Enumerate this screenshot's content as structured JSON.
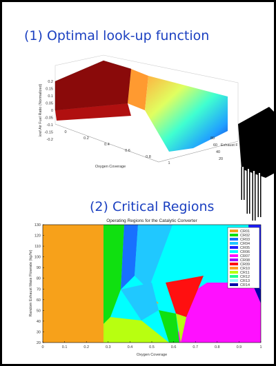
{
  "top_panel": {
    "heading": "(1) Optimal look-up function",
    "z_label": "λref Air Fuel Ratio (Normalized)",
    "x_label": "Oxygen Coverage",
    "y_label": "Exhaust F",
    "z_ticks": [
      0.2,
      0.15,
      0.1,
      0.05,
      0,
      -0.05,
      -0.1,
      -0.15,
      -0.2
    ],
    "x_ticks": [
      0,
      0.2,
      0.4,
      0.6,
      0.8,
      1
    ],
    "y_ticks": [
      20,
      40,
      60,
      80
    ]
  },
  "bottom_panel": {
    "heading": "(2) Critical Regions",
    "title": "Operating Regions for the Catalytic Converter",
    "x_label": "Oxygen Coverage",
    "y_label": "Random Exhaust Mass Flowrate (kg/hr)",
    "x_ticks": [
      0,
      0.1,
      0.2,
      0.3,
      0.4,
      0.5,
      0.6,
      0.7,
      0.8,
      0.9,
      1
    ],
    "y_ticks": [
      20,
      30,
      40,
      50,
      60,
      70,
      80,
      90,
      100,
      110,
      120,
      130
    ],
    "legend": [
      {
        "name": "CR01",
        "color": "#f7a11a"
      },
      {
        "name": "CR02",
        "color": "#10e010"
      },
      {
        "name": "CR03",
        "color": "#1870ff"
      },
      {
        "name": "CR04",
        "color": "#20c8ff"
      },
      {
        "name": "CR05",
        "color": "#2020ff"
      },
      {
        "name": "CR06",
        "color": "#00ffff"
      },
      {
        "name": "CR07",
        "color": "#ff10ff"
      },
      {
        "name": "CR08",
        "color": "#a010ff"
      },
      {
        "name": "CR09",
        "color": "#ff1010"
      },
      {
        "name": "CR10",
        "color": "#ffa020"
      },
      {
        "name": "CR11",
        "color": "#b8ff10"
      },
      {
        "name": "CR12",
        "color": "#20ff90"
      },
      {
        "name": "CR13",
        "color": "#90ffff"
      },
      {
        "name": "CR14",
        "color": "#0000a8"
      }
    ]
  }
}
